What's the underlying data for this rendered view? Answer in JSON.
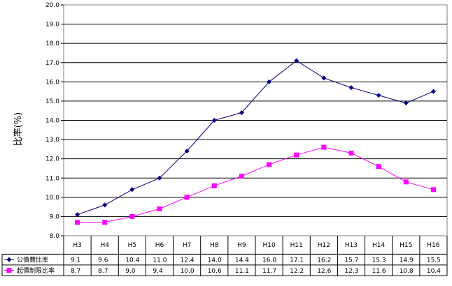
{
  "chart_data": {
    "type": "line",
    "title": "",
    "xlabel": "",
    "ylabel": "比率(%)",
    "ylim": [
      8.0,
      20.0
    ],
    "ytick_step": 1.0,
    "grid": true,
    "legend": "data-table",
    "categories": [
      "H3",
      "H4",
      "H5",
      "H6",
      "H7",
      "H8",
      "H9",
      "H10",
      "H11",
      "H12",
      "H13",
      "H14",
      "H15",
      "H16"
    ],
    "series": [
      {
        "name": "公債費比率",
        "color": "#000080",
        "marker": "diamond",
        "values": [
          9.1,
          9.6,
          10.4,
          11.0,
          12.4,
          14.0,
          14.4,
          16.0,
          17.1,
          16.2,
          15.7,
          15.3,
          14.9,
          15.5
        ],
        "labels": [
          "9.1",
          "9.6",
          "10.4",
          "11.0",
          "12.4",
          "14.0",
          "14.4",
          "16.0",
          "17.1",
          "16.2",
          "15.7",
          "15.3",
          "14.9",
          "15.5"
        ]
      },
      {
        "name": "起債制限比率",
        "color": "#ff00ff",
        "marker": "square",
        "values": [
          8.7,
          8.7,
          9.0,
          9.4,
          10.0,
          10.6,
          11.1,
          11.7,
          12.2,
          12.6,
          12.3,
          11.6,
          10.8,
          10.4
        ],
        "labels": [
          "8.7",
          "8.7",
          "9.0",
          "9.4",
          "10.0",
          "10.6",
          "11.1",
          "11.7",
          "12.2",
          "12.6",
          "12.3",
          "11.6",
          "10.8",
          "10.4"
        ]
      }
    ]
  }
}
